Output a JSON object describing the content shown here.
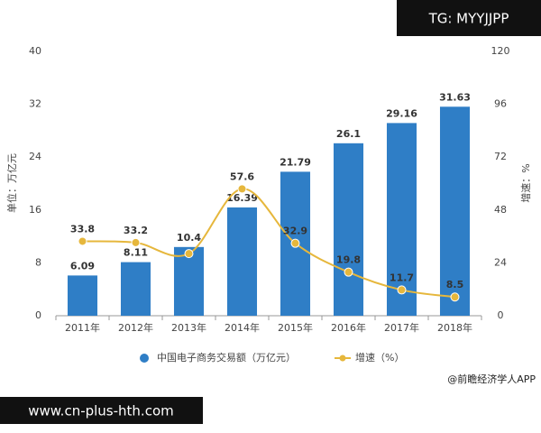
{
  "chart_data": {
    "type": "bar",
    "categories": [
      "2011年",
      "2012年",
      "2013年",
      "2014年",
      "2015年",
      "2016年",
      "2017年",
      "2018年"
    ],
    "series": [
      {
        "name": "中国电子商务交易额（万亿元）",
        "type": "bar",
        "color": "#2f7ec6",
        "values": [
          6.09,
          8.11,
          10.4,
          16.39,
          21.79,
          26.1,
          29.16,
          31.63
        ]
      },
      {
        "name": "增速（%）",
        "type": "line",
        "axis": "y2",
        "color": "#e6b73c",
        "values": [
          33.8,
          33.2,
          28.2,
          57.6,
          32.9,
          19.8,
          11.7,
          8.5
        ],
        "value_labels": [
          "33.8",
          "33.2",
          null,
          "57.6",
          "32.9",
          "19.8",
          "11.7",
          "8.5"
        ]
      }
    ],
    "ylim": [
      0,
      40
    ],
    "yticks": [
      0,
      8,
      16,
      24,
      32,
      40
    ],
    "y2lim": [
      0,
      120
    ],
    "y2ticks": [
      0,
      24,
      48,
      72,
      96,
      120
    ],
    "ylabel": "单位：万亿元",
    "y2label": "增速：%",
    "grid": false
  },
  "watermarks": {
    "top": "TG: MYYJJPP",
    "bottom": "www.cn-plus-hth.com"
  },
  "source": "@前瞻经济学人APP"
}
